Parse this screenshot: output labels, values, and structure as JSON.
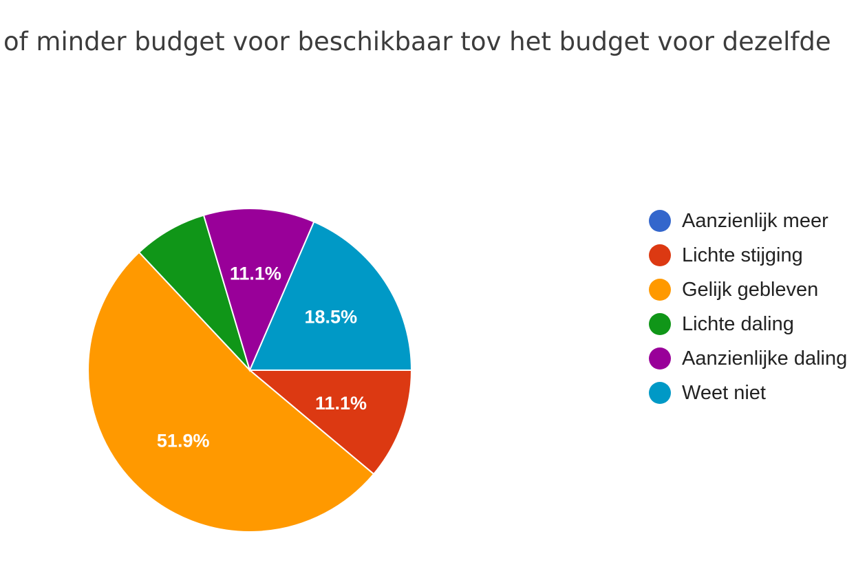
{
  "title": "r of minder budget voor beschikbaar tov het budget voor dezelfde",
  "chart_data": {
    "type": "pie",
    "title": "r of minder budget voor beschikbaar tov het budget voor dezelfde",
    "legend_position": "right",
    "slices": [
      {
        "label": "Aanzienlijk meer",
        "value": 0,
        "display_label": "",
        "color": "#3366cc"
      },
      {
        "label": "Lichte stijging",
        "value": 11.1,
        "display_label": "11.1%",
        "color": "#dc3912"
      },
      {
        "label": "Gelijk gebleven",
        "value": 51.9,
        "display_label": "51.9%",
        "color": "#ff9900"
      },
      {
        "label": "Lichte daling",
        "value": 7.4,
        "display_label": "",
        "color": "#109618"
      },
      {
        "label": "Aanzienlijke daling",
        "value": 11.1,
        "display_label": "11.1%",
        "color": "#990099"
      },
      {
        "label": "Weet niet",
        "value": 18.5,
        "display_label": "18.5%",
        "color": "#0099c6"
      }
    ]
  }
}
